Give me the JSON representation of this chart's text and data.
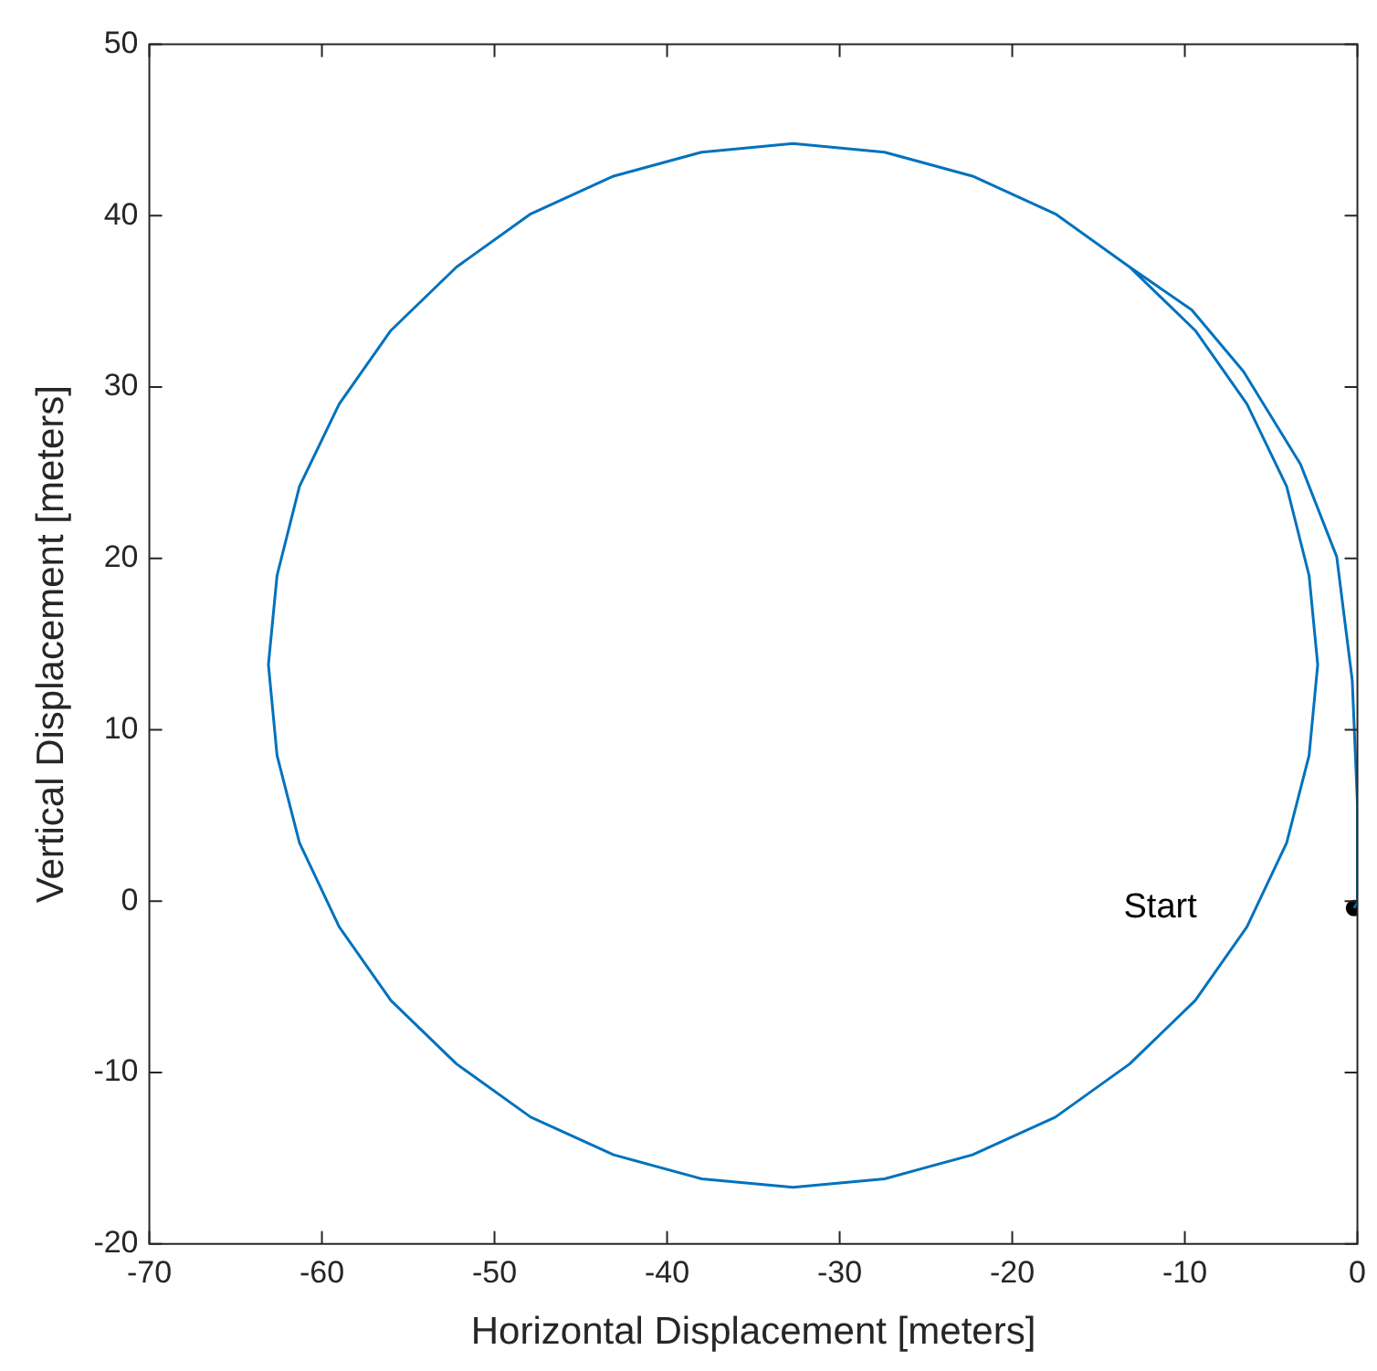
{
  "chart_data": {
    "type": "line",
    "xlabel": "Horizontal Displacement [meters]",
    "ylabel": "Vertical Displacement [meters]",
    "xlim": [
      -70,
      0
    ],
    "ylim": [
      -20,
      50
    ],
    "xticks": [
      -70,
      -60,
      -50,
      -40,
      -30,
      -20,
      -10,
      0
    ],
    "yticks": [
      -20,
      -10,
      0,
      10,
      20,
      30,
      40,
      50
    ],
    "line_style": "solid",
    "annotations": [
      "Start"
    ],
    "series": [
      {
        "color": "#0072bd",
        "marker": "none",
        "x": [
          -0.2,
          0,
          0,
          -0.3,
          -1.2,
          -3.3,
          -6.6,
          -9.6,
          -13.2,
          -17.5,
          -22.3,
          -27.4,
          -32.7,
          -38.0,
          -43.1,
          -47.9,
          -52.2,
          -56.0,
          -59.0,
          -61.3,
          -62.6,
          -63.1,
          -62.6,
          -61.3,
          -59.0,
          -56.0,
          -52.2,
          -47.9,
          -43.1,
          -38.0,
          -32.7,
          -27.4,
          -22.3,
          -17.5,
          -13.2,
          -9.4,
          -6.4,
          -4.1,
          -2.8,
          -2.3,
          -2.8,
          -4.1,
          -6.4,
          -9.4,
          -13.2,
          -17.5,
          -22.3
        ],
        "values": [
          -0.4,
          -0.1,
          5.7,
          12.9,
          20.1,
          25.5,
          30.9,
          34.5,
          37.0,
          40.1,
          42.3,
          43.7,
          44.2,
          43.7,
          42.3,
          40.1,
          37.0,
          33.3,
          29.0,
          24.2,
          19.0,
          13.8,
          8.5,
          3.4,
          -1.5,
          -5.8,
          -9.5,
          -12.6,
          -14.8,
          -16.2,
          -16.7,
          -16.2,
          -14.8,
          -12.6,
          -9.5,
          -5.8,
          -1.5,
          3.4,
          8.5,
          13.8,
          19.0,
          24.2,
          29.0,
          33.3,
          37.0,
          40.1,
          42.3
        ]
      },
      {
        "type": "scatter",
        "color": "#000000",
        "marker": "circle",
        "x": [
          -0.2
        ],
        "values": [
          -0.4
        ]
      }
    ]
  }
}
